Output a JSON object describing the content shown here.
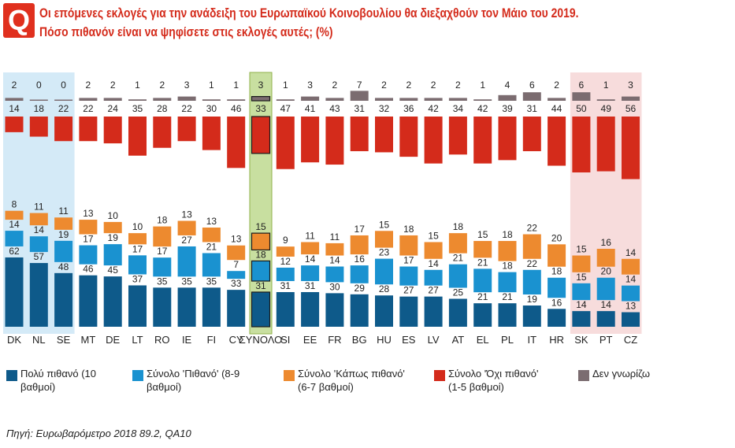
{
  "header": {
    "badge": "Q",
    "title_line1": "Οι επόμενες εκλογές για την ανάδειξη του Ευρωπαϊκού Κοινοβουλίου θα διεξαχθούν τον Μάιο του 2019.",
    "title_line2": "Πόσο πιθανόν είναι να ψηφίσετε στις εκλογές αυτές; (%)"
  },
  "legend": [
    {
      "label_line1": "Πολύ πιθανό (10",
      "label_line2": "βαθμοί)",
      "color": "#0e5a8a"
    },
    {
      "label_line1": "Σύνολο 'Πιθανό' (8-9",
      "label_line2": "βαθμοί)",
      "color": "#1a92d0"
    },
    {
      "label_line1": "Σύνολο 'Κάπως πιθανό'",
      "label_line2": "(6-7 βαθμοί)",
      "color": "#ed8a2f"
    },
    {
      "label_line1": "Σύνολο 'Όχι πιθανό'",
      "label_line2": "(1-5 βαθμοί)",
      "color": "#d42b1b"
    },
    {
      "label_line1": "Δεν γνωρίζω",
      "label_line2": "",
      "color": "#7b6c70"
    }
  ],
  "source": "Πηγή: Ευρωβαρόμετρο 2018 89.2, QA10",
  "chart_data": {
    "type": "bar",
    "stacked": true,
    "title": "Πόσο πιθανόν είναι να ψηφίσετε στις εκλογές αυτές; (%)",
    "categories": [
      "DK",
      "NL",
      "SE",
      "MT",
      "DE",
      "LT",
      "RO",
      "IE",
      "FI",
      "CY",
      "ΣΥΝΟΛΟ",
      "SI",
      "EE",
      "FR",
      "BG",
      "HU",
      "ES",
      "LV",
      "AT",
      "EL",
      "PL",
      "IT",
      "HR",
      "SK",
      "PT",
      "CZ"
    ],
    "highlight_groups": [
      {
        "categories": [
          "DK",
          "NL",
          "SE"
        ],
        "color": "#d4eaf7"
      },
      {
        "categories": [
          "ΣΥΝΟΛΟ"
        ],
        "color": "#c8dfa0"
      },
      {
        "categories": [
          "SK",
          "PT",
          "CZ"
        ],
        "color": "#f7dcdc"
      }
    ],
    "series": [
      {
        "name": "Πολύ πιθανό (10 βαθμοί)",
        "color": "#0e5a8a",
        "values": [
          62,
          57,
          48,
          46,
          45,
          37,
          35,
          35,
          35,
          33,
          31,
          31,
          31,
          30,
          29,
          28,
          27,
          27,
          25,
          21,
          21,
          19,
          16,
          14,
          14,
          13
        ]
      },
      {
        "name": "Σύνολο 'Πιθανό' (8-9 βαθμοί)",
        "color": "#1a92d0",
        "values": [
          14,
          14,
          19,
          17,
          19,
          17,
          17,
          27,
          21,
          7,
          18,
          12,
          14,
          14,
          16,
          23,
          17,
          14,
          21,
          21,
          18,
          22,
          18,
          15,
          20,
          14
        ]
      },
      {
        "name": "Σύνολο 'Κάπως πιθανό' (6-7 βαθμοί)",
        "color": "#ed8a2f",
        "values": [
          8,
          11,
          11,
          13,
          10,
          10,
          18,
          13,
          13,
          13,
          15,
          9,
          11,
          11,
          17,
          15,
          18,
          15,
          18,
          15,
          18,
          22,
          20,
          15,
          16,
          14
        ]
      },
      {
        "name": "Σύνολο 'Όχι πιθανό' (1-5 βαθμοί)",
        "color": "#d42b1b",
        "values": [
          14,
          18,
          22,
          22,
          24,
          35,
          28,
          22,
          30,
          46,
          33,
          47,
          41,
          43,
          31,
          32,
          36,
          42,
          34,
          42,
          39,
          31,
          44,
          50,
          49,
          56
        ]
      },
      {
        "name": "Δεν γνωρίζω",
        "color": "#7b6c70",
        "values": [
          2,
          0,
          0,
          2,
          2,
          1,
          2,
          3,
          1,
          1,
          3,
          1,
          3,
          2,
          7,
          2,
          2,
          2,
          2,
          1,
          4,
          6,
          2,
          6,
          1,
          3
        ]
      }
    ],
    "ylim": [
      0,
      100
    ],
    "xlabel": "",
    "ylabel": ""
  }
}
